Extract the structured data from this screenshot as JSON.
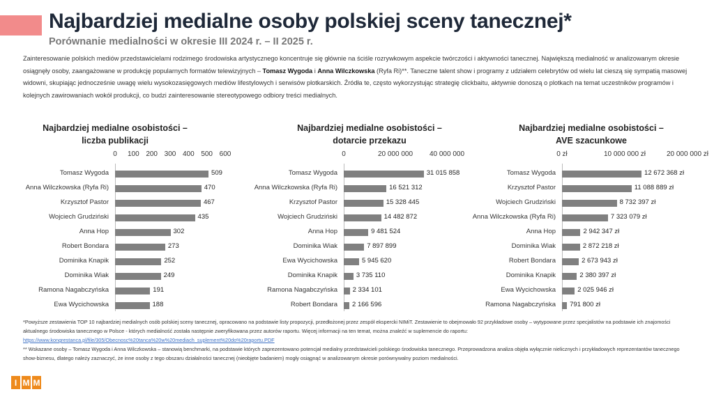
{
  "header": {
    "title": "Najbardziej medialne osoby polskiej sceny tanecznej*",
    "subtitle": "Porównanie medialności w okresie III 2024 r. – II 2025 r."
  },
  "intro": {
    "p1": "Zainteresowanie polskich mediów przedstawicielami rodzimego środowiska artystycznego koncentruje się głównie na ściśle rozrywkowym aspekcie twórczości i aktywności tanecznej. Największą medialność w analizowanym okresie osiągnęły osoby, zaangażowane w produkcję popularnych formatów telewizyjnych – ",
    "name1": "Tomasz Wygoda",
    "and": " i ",
    "name2": "Anna Wilczkowska",
    "p2": " (Ryfa Ri)**. Taneczne talent show i programy z udziałem celebrytów od wielu lat cieszą się sympatią masowej widowni, skupiając jednocześnie uwagę wielu wysokozasięgowych mediów lifestylowych i serwisów plotkarskich. Źródła te, często wykorzystując strategię clickbaitu, aktywnie donoszą o plotkach na temat uczestników programów i kolejnych zawirowaniach wokół produkcji, co budzi zainteresowanie stereotypowego odbiory treści medialnych."
  },
  "chart_data": [
    {
      "type": "bar",
      "orientation": "horizontal",
      "title": "Najbardziej medialne osobistości – liczba publikacji",
      "xlim": [
        0,
        600
      ],
      "ticks": [
        "0",
        "100",
        "200",
        "300",
        "400",
        "500",
        "600"
      ],
      "tick_values": [
        0,
        100,
        200,
        300,
        400,
        500,
        600
      ],
      "categories": [
        "Tomasz Wygoda",
        "Anna Wilczkowska (Ryfa Ri)",
        "Krzysztof Pastor",
        "Wojciech Grudziński",
        "Anna Hop",
        "Robert Bondara",
        "Dominika Knapik",
        "Dominika Wiak",
        "Ramona Nagabczyńska",
        "Ewa Wycichowska"
      ],
      "values": [
        509,
        470,
        467,
        435,
        302,
        273,
        252,
        249,
        191,
        188
      ],
      "labels": [
        "509",
        "470",
        "467",
        "435",
        "302",
        "273",
        "252",
        "249",
        "191",
        "188"
      ]
    },
    {
      "type": "bar",
      "orientation": "horizontal",
      "title": "Najbardziej medialne osobistości – dotarcie przekazu",
      "xlim": [
        0,
        40000000
      ],
      "ticks": [
        "0",
        "20 000 000",
        "40 000 000"
      ],
      "tick_values": [
        0,
        20000000,
        40000000
      ],
      "categories": [
        "Tomasz Wygoda",
        "Anna Wilczkowska (Ryfa Ri)",
        "Krzysztof Pastor",
        "Wojciech Grudziński",
        "Anna Hop",
        "Dominika Wiak",
        "Ewa Wycichowska",
        "Dominika Knapik",
        "Ramona Nagabczyńska",
        "Robert Bondara"
      ],
      "values": [
        31015858,
        16521312,
        15328445,
        14482872,
        9481524,
        7897899,
        5945620,
        3735110,
        2334101,
        2166596
      ],
      "labels": [
        "31 015 858",
        "16 521 312",
        "15 328 445",
        "14 482 872",
        "9 481 524",
        "7 897 899",
        "5 945 620",
        "3 735 110",
        "2 334 101",
        "2 166 596"
      ]
    },
    {
      "type": "bar",
      "orientation": "horizontal",
      "title": "Najbardziej medialne osobistości – AVE szacunkowe",
      "xlim": [
        0,
        20000000
      ],
      "ticks": [
        "0 zł",
        "10 000 000 zł",
        "20 000 000 zł"
      ],
      "tick_values": [
        0,
        10000000,
        20000000
      ],
      "categories": [
        "Tomasz Wygoda",
        "Krzysztof Pastor",
        "Wojciech Grudziński",
        "Anna Wilczkowska (Ryfa Ri)",
        "Anna Hop",
        "Dominika Wiak",
        "Robert Bondara",
        "Dominika Knapik",
        "Ewa Wycichowska",
        "Ramona Nagabczyńska"
      ],
      "values": [
        12672368,
        11088889,
        8732397,
        7323079,
        2942347,
        2872218,
        2673943,
        2380397,
        2025946,
        791800
      ],
      "labels": [
        "12 672 368 zł",
        "11 088 889 zł",
        "8 732 397 zł",
        "7 323 079 zł",
        "2 942 347 zł",
        "2 872 218 zł",
        "2 673 943 zł",
        "2 380 397 zł",
        "2 025 946 zł",
        "791 800 zł"
      ]
    }
  ],
  "chart_titles": [
    [
      "Najbardziej medialne osobistości –",
      "liczba publikacji"
    ],
    [
      "Najbardziej medialne osobistości –",
      "dotarcie przekazu"
    ],
    [
      "Najbardziej medialne osobistości –",
      "AVE szacunkowe"
    ]
  ],
  "notes": {
    "n1": "*Powyższe zestawienia TOP 10 najbardziej medialnych osób polskiej sceny tanecznej, opracowano na podstawie listy propozycji, przedłożonej przez zespół ekspercki NIMiT. Zestawienie to obejmowało 92 przykładowe osoby – wytypowane przez specjalistów na podstawie ich znajomości aktualnego środowiska tanecznego w Polsce - których medialność została następnie zweryfikowana przez autorów raportu. Więcej informacji na ten temat, można znaleźć w suplemencie do raportu:",
    "link": "https://www.kongrestanca.pl/file/305/Obecnosc%20tanca%20w%20mediach_suplement%20do%20raportu.PDF",
    "n2": "** Wskazane osoby – Tomasz Wygoda i Anna Wilczkowska – stanowią benchmarki, na podstawie których zaprezentowano potencjał medialny przedstawicieli polskiego środowiska tanecznego. Przeprowadzona analiza objęła wyłącznie nielicznych i przykładowych reprezentantów tanecznego show-biznesu, dlatego należy zaznaczyć, że inne osoby z tego obszaru działalności tanecznej (nieobjęte badaniem) mogły osiągnąć w analizowanym okresie porównywalny poziom medialności."
  },
  "logo": [
    "I",
    "M",
    "M"
  ],
  "colors": {
    "bar": "#808080",
    "accent": "#f28b8b",
    "logo": "#ee8a1c",
    "title": "#1e2838"
  }
}
